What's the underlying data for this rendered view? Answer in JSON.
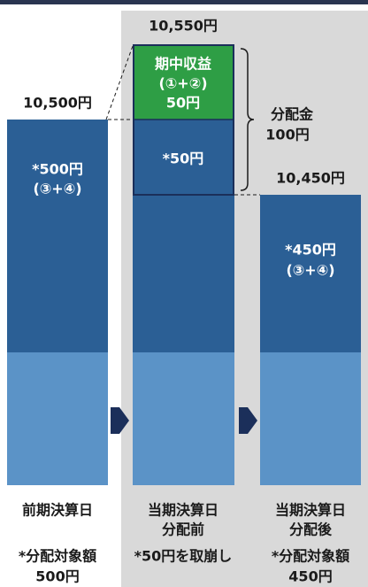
{
  "columns": [
    {
      "price": "10,500円",
      "body": [
        "*500円",
        "(③+④)"
      ],
      "date": [
        "前期決算日"
      ],
      "note": [
        "*分配対象額",
        "500円"
      ]
    },
    {
      "price": "10,550円",
      "income": [
        "期中収益",
        "(①+②)",
        "50円"
      ],
      "body": [
        "*50円"
      ],
      "date": [
        "当期決算日",
        "分配前"
      ],
      "note": [
        "*50円を取崩し"
      ]
    },
    {
      "price": "10,450円",
      "body": [
        "*450円",
        "(③+④)"
      ],
      "date": [
        "当期決算日",
        "分配後"
      ],
      "note": [
        "*分配対象額",
        "450円"
      ]
    }
  ],
  "distribution": [
    "分配金",
    "100円"
  ]
}
